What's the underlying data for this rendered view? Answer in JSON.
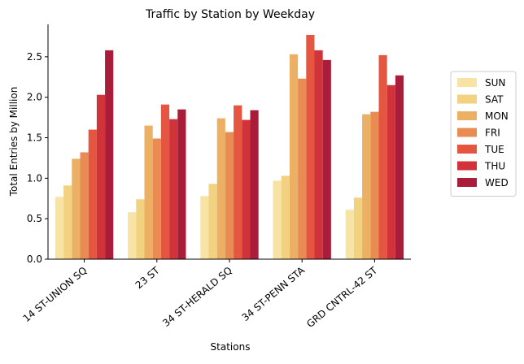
{
  "chart_data": {
    "type": "bar",
    "title": "Traffic by Station by Weekday",
    "xlabel": "Stations",
    "ylabel": "Total Entries by Million",
    "ylim": [
      0,
      2.9
    ],
    "yticks": [
      "0.0",
      "0.5",
      "1.0",
      "1.5",
      "2.0",
      "2.5"
    ],
    "grid": false,
    "legend_position": "right",
    "categories": [
      "14 ST-UNION SQ",
      "23 ST",
      "34 ST-HERALD SQ",
      "34 ST-PENN STA",
      "GRD CNTRL-42 ST"
    ],
    "series": [
      {
        "name": "SUN",
        "color": "#f7e4a4",
        "values": [
          0.77,
          0.58,
          0.78,
          0.97,
          0.61
        ]
      },
      {
        "name": "SAT",
        "color": "#f2d181",
        "values": [
          0.91,
          0.74,
          0.93,
          1.03,
          0.76
        ]
      },
      {
        "name": "MON",
        "color": "#ebb064",
        "values": [
          1.24,
          1.65,
          1.74,
          2.53,
          1.79
        ]
      },
      {
        "name": "FRI",
        "color": "#e98c54",
        "values": [
          1.32,
          1.49,
          1.57,
          2.23,
          1.82
        ]
      },
      {
        "name": "TUE",
        "color": "#e4563f",
        "values": [
          1.6,
          1.91,
          1.9,
          2.77,
          2.52
        ]
      },
      {
        "name": "THU",
        "color": "#d0343a",
        "values": [
          2.03,
          1.73,
          1.72,
          2.58,
          2.15
        ]
      },
      {
        "name": "WED",
        "color": "#a91d3a",
        "values": [
          2.58,
          1.85,
          1.84,
          2.46,
          2.27
        ]
      }
    ]
  }
}
